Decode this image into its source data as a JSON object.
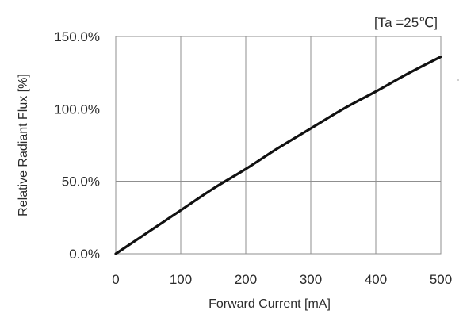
{
  "chart_data": {
    "type": "line",
    "title": "",
    "condition_label": "[Ta =25℃]",
    "xlabel": "Forward Current [mA]",
    "ylabel": "Relative Radiant Flux [%]",
    "xlim": [
      0,
      500
    ],
    "ylim": [
      0,
      150
    ],
    "x_ticks": [
      0,
      100,
      200,
      300,
      400,
      500
    ],
    "x_tick_labels": [
      "0",
      "100",
      "200",
      "300",
      "400",
      "500"
    ],
    "y_ticks": [
      0,
      50,
      100,
      150
    ],
    "y_tick_labels": [
      "0.0%",
      "50.0%",
      "100.0%",
      "150.0%"
    ],
    "grid": true,
    "series": [
      {
        "x": [
          0,
          25,
          50,
          75,
          100,
          150,
          200,
          250,
          300,
          350,
          400,
          450,
          500
        ],
        "y": [
          0,
          7.5,
          15,
          22.5,
          30,
          45,
          58.5,
          73,
          86.5,
          100,
          112,
          124.5,
          136
        ]
      }
    ]
  },
  "decor": {
    "right_edge_mark": "-"
  }
}
